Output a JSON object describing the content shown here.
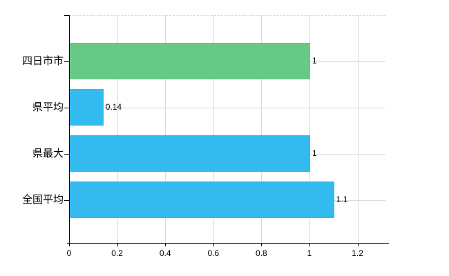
{
  "chart_data": {
    "type": "bar",
    "orientation": "horizontal",
    "title": "",
    "xlabel": "",
    "ylabel": "",
    "categories": [
      "四日市市",
      "県平均",
      "県最大",
      "全国平均"
    ],
    "values": [
      1,
      0.14,
      1,
      1.1
    ],
    "value_labels": [
      "1",
      "0.14",
      "1",
      "1.1"
    ],
    "bar_colors": [
      "#66C984",
      "#33BAEF",
      "#33BAEF",
      "#33BAEF"
    ],
    "x_ticks": [
      0,
      0.2,
      0.4,
      0.6,
      0.8,
      1,
      1.2
    ],
    "x_tick_labels": [
      "0",
      "0.2",
      "0.4",
      "0.6",
      "0.8",
      "1",
      "1.2"
    ],
    "xlim": [
      0,
      1.32
    ],
    "grid": true,
    "legend": false,
    "colors": {
      "bar_green": "#66C984",
      "bar_blue": "#33BAEF",
      "grid": "#d9d9d9",
      "axis": "#000000",
      "text": "#000000",
      "background": "#ffffff"
    }
  }
}
